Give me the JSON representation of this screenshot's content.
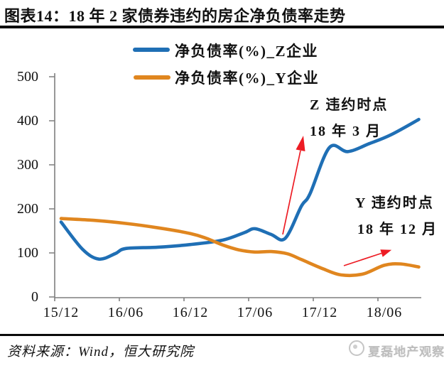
{
  "title": "图表14：18 年 2 家债券违约的房企净负债率走势",
  "legend": [
    {
      "label": "净负债率(%)_Z企业",
      "color": "#1f6fb5"
    },
    {
      "label": "净负债率(%)_Y企业",
      "color": "#e0861f"
    }
  ],
  "annotations": {
    "z_default": {
      "line1": "Z 违约时点",
      "line2": "18 年 3 月"
    },
    "y_default": {
      "line1": "Y 违约时点",
      "line2": "18 年 12 月"
    }
  },
  "footer": {
    "source": "资料来源：Wind，恒大研究院",
    "watermark": "夏磊地产观察"
  },
  "chart_data": {
    "type": "line",
    "title": "18年2家债券违约的房企净负债率走势",
    "ylabel": "净负债率(%)",
    "ylim": [
      0,
      500
    ],
    "y_ticks": [
      0,
      100,
      200,
      300,
      400,
      500
    ],
    "x_tick_labels": [
      "15/12",
      "16/06",
      "16/12",
      "17/06",
      "17/12",
      "18/06"
    ],
    "x_unit": "points given as [months since 2015/12, value]; series span 15/12 to ~18/09",
    "grid": false,
    "legend_position": "top",
    "annotations_text": [
      "Z 违约时点 18 年 3 月",
      "Y 违约时点 18 年 12 月"
    ],
    "arrow_color": "#ed1c24",
    "axis_color": "#7f7f7f",
    "series": [
      {
        "name": "净负债率(%)_Z企业",
        "color": "#1f6fb5",
        "points": [
          [
            0,
            170
          ],
          [
            2,
            108
          ],
          [
            3.5,
            86
          ],
          [
            5,
            98
          ],
          [
            6,
            110
          ],
          [
            9,
            113
          ],
          [
            12,
            119
          ],
          [
            15,
            129
          ],
          [
            17,
            146
          ],
          [
            18,
            155
          ],
          [
            19.5,
            142
          ],
          [
            20.8,
            133
          ],
          [
            22.3,
            206
          ],
          [
            23.1,
            234
          ],
          [
            24.9,
            339
          ],
          [
            26.6,
            330
          ],
          [
            28.6,
            348
          ],
          [
            30.6,
            368
          ],
          [
            33.2,
            403
          ]
        ]
      },
      {
        "name": "净负债率(%)_Y企业",
        "color": "#e0861f",
        "points": [
          [
            0,
            178
          ],
          [
            3,
            174
          ],
          [
            6,
            167
          ],
          [
            9,
            157
          ],
          [
            12,
            144
          ],
          [
            13.5,
            133
          ],
          [
            15,
            118
          ],
          [
            16.5,
            107
          ],
          [
            18,
            102
          ],
          [
            19.5,
            103
          ],
          [
            21,
            98
          ],
          [
            22.3,
            85
          ],
          [
            24.3,
            64
          ],
          [
            26,
            50
          ],
          [
            28,
            52
          ],
          [
            30,
            72
          ],
          [
            31.5,
            75
          ],
          [
            33.2,
            68
          ]
        ]
      }
    ]
  }
}
